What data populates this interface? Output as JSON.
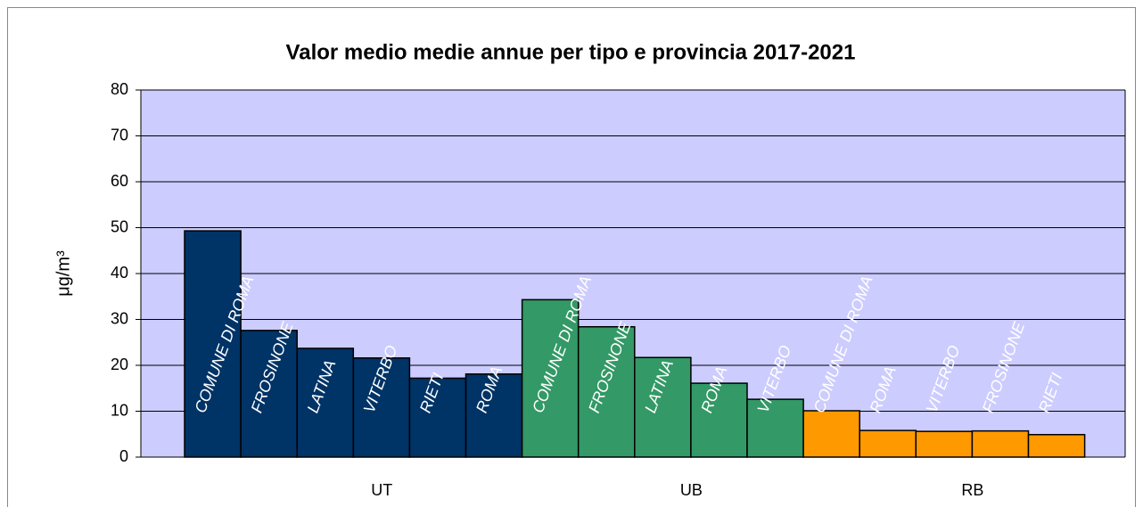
{
  "chart_data": {
    "type": "bar",
    "title": "Valor medio medie annue per tipo e provincia 2017-2021",
    "y_label": "μg/m³",
    "ylim": [
      0,
      80
    ],
    "yticks": [
      0,
      10,
      20,
      30,
      40,
      50,
      60,
      70,
      80
    ],
    "grid": true,
    "series": [
      {
        "name": "UT",
        "color": "#003366",
        "categories": [
          "COMUNE DI ROMA",
          "FROSINONE",
          "LATINA",
          "VITERBO",
          "RIETI",
          "ROMA"
        ],
        "values": [
          49.3,
          27.6,
          23.7,
          21.6,
          17.2,
          18.1
        ]
      },
      {
        "name": "UB",
        "color": "#339966",
        "categories": [
          "COMUNE DI ROMA",
          "FROSINONE",
          "LATINA",
          "ROMA",
          "VITERBO"
        ],
        "values": [
          34.3,
          28.4,
          21.7,
          16.1,
          12.6
        ]
      },
      {
        "name": "RB",
        "color": "#ff9900",
        "categories": [
          "COMUNE DI ROMA",
          "ROMA",
          "VITERBO",
          "FROSINONE",
          "RIETI"
        ],
        "values": [
          10.1,
          5.8,
          5.6,
          5.7,
          4.9
        ]
      }
    ]
  }
}
